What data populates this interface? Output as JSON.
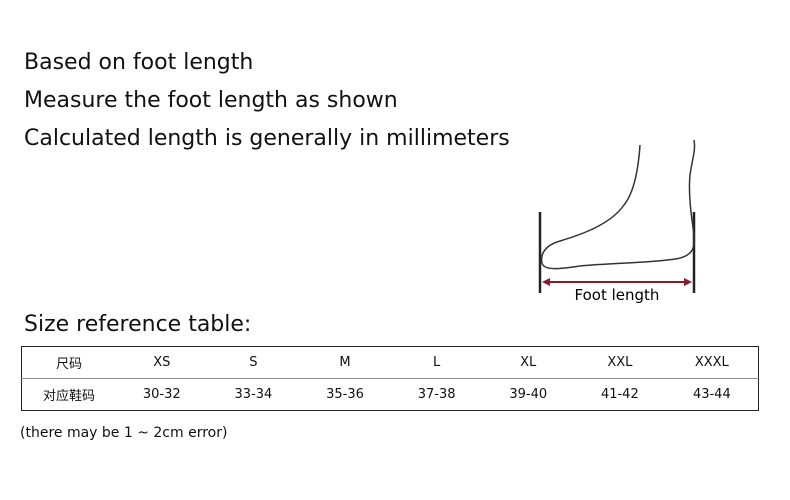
{
  "intro": {
    "lines": [
      "Based on foot length",
      "Measure the foot length as shown",
      "Calculated length is generally in millimeters"
    ]
  },
  "diagram": {
    "label": "Foot length"
  },
  "table": {
    "title": "Size reference table:",
    "rows": [
      [
        "尺码",
        "XS",
        "S",
        "M",
        "L",
        "XL",
        "XXL",
        "XXXL"
      ],
      [
        "对应鞋码",
        "30-32",
        "33-34",
        "35-36",
        "37-38",
        "39-40",
        "41-42",
        "43-44"
      ]
    ]
  },
  "note": "(there may be 1 ~ 2cm error)"
}
